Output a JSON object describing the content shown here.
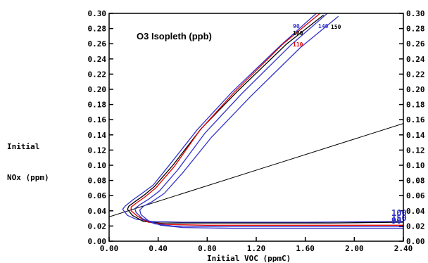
{
  "chart_data": {
    "type": "line",
    "title": "O3 Isopleth (ppb)",
    "xlabel": "Initial VOC (ppmC)",
    "ylabel_line1": "Initial",
    "ylabel_line2": "NOx (ppm)",
    "xlim": [
      0.0,
      2.4
    ],
    "ylim": [
      0.0,
      0.3
    ],
    "x_ticks": [
      "0.00",
      "0.40",
      "0.80",
      "1.20",
      "1.60",
      "2.00",
      "2.40"
    ],
    "x_tick_values": [
      0.0,
      0.4,
      0.8,
      1.2,
      1.6,
      2.0,
      2.4
    ],
    "y_ticks": [
      "0.00",
      "0.02",
      "0.04",
      "0.06",
      "0.08",
      "0.10",
      "0.12",
      "0.14",
      "0.16",
      "0.18",
      "0.20",
      "0.22",
      "0.24",
      "0.26",
      "0.28",
      "0.30"
    ],
    "y_tick_values": [
      0.0,
      0.02,
      0.04,
      0.06,
      0.08,
      0.1,
      0.12,
      0.14,
      0.16,
      0.18,
      0.2,
      0.22,
      0.24,
      0.26,
      0.28,
      0.3
    ],
    "grid": false,
    "ratio_line": {
      "color": "#000000",
      "points": [
        [
          0.0,
          0.032
        ],
        [
          2.4,
          0.155
        ]
      ]
    },
    "series": [
      {
        "label": "90",
        "color": "#3333cc",
        "points": [
          [
            1.69,
            0.3
          ],
          [
            1.4,
            0.258
          ],
          [
            1.0,
            0.196
          ],
          [
            0.72,
            0.147
          ],
          [
            0.5,
            0.102
          ],
          [
            0.36,
            0.074
          ],
          [
            0.26,
            0.062
          ],
          [
            0.19,
            0.054
          ],
          [
            0.13,
            0.046
          ],
          [
            0.11,
            0.042
          ],
          [
            0.15,
            0.034
          ],
          [
            0.22,
            0.029
          ],
          [
            0.35,
            0.026
          ],
          [
            0.6,
            0.025
          ],
          [
            1.0,
            0.025
          ],
          [
            1.6,
            0.025
          ],
          [
            2.4,
            0.026
          ]
        ]
      },
      {
        "label": "100",
        "color": "#000000",
        "points": [
          [
            1.75,
            0.298
          ],
          [
            1.45,
            0.26
          ],
          [
            1.05,
            0.198
          ],
          [
            0.75,
            0.148
          ],
          [
            0.52,
            0.1
          ],
          [
            0.37,
            0.072
          ],
          [
            0.28,
            0.06
          ],
          [
            0.21,
            0.052
          ],
          [
            0.16,
            0.046
          ],
          [
            0.15,
            0.042
          ],
          [
            0.19,
            0.034
          ],
          [
            0.28,
            0.026
          ],
          [
            0.42,
            0.024
          ],
          [
            0.7,
            0.024
          ],
          [
            1.2,
            0.024
          ],
          [
            1.8,
            0.024
          ],
          [
            2.4,
            0.025
          ]
        ]
      },
      {
        "label": "110",
        "color": "#dd0000",
        "points": [
          [
            1.72,
            0.3
          ],
          [
            1.42,
            0.26
          ],
          [
            1.02,
            0.196
          ],
          [
            0.74,
            0.146
          ],
          [
            0.53,
            0.098
          ],
          [
            0.38,
            0.07
          ],
          [
            0.29,
            0.058
          ],
          [
            0.22,
            0.05
          ],
          [
            0.18,
            0.045
          ],
          [
            0.18,
            0.04
          ],
          [
            0.23,
            0.033
          ],
          [
            0.32,
            0.025
          ],
          [
            0.46,
            0.022
          ],
          [
            0.8,
            0.021
          ],
          [
            1.3,
            0.021
          ],
          [
            1.9,
            0.021
          ],
          [
            2.4,
            0.021
          ]
        ]
      },
      {
        "label": "140",
        "color": "#3333cc",
        "points": [
          [
            1.78,
            0.3
          ],
          [
            1.48,
            0.258
          ],
          [
            1.08,
            0.194
          ],
          [
            0.78,
            0.142
          ],
          [
            0.56,
            0.094
          ],
          [
            0.41,
            0.066
          ],
          [
            0.32,
            0.055
          ],
          [
            0.25,
            0.048
          ],
          [
            0.21,
            0.043
          ],
          [
            0.22,
            0.038
          ],
          [
            0.27,
            0.03
          ],
          [
            0.37,
            0.023
          ],
          [
            0.52,
            0.02
          ],
          [
            0.9,
            0.019
          ],
          [
            1.5,
            0.019
          ],
          [
            2.0,
            0.019
          ],
          [
            2.4,
            0.019
          ]
        ]
      },
      {
        "label": "150",
        "color": "#3333cc",
        "points": [
          [
            1.87,
            0.296
          ],
          [
            1.56,
            0.255
          ],
          [
            1.15,
            0.19
          ],
          [
            0.83,
            0.136
          ],
          [
            0.6,
            0.09
          ],
          [
            0.45,
            0.063
          ],
          [
            0.35,
            0.052
          ],
          [
            0.28,
            0.046
          ],
          [
            0.25,
            0.041
          ],
          [
            0.26,
            0.035
          ],
          [
            0.32,
            0.027
          ],
          [
            0.42,
            0.021
          ],
          [
            0.6,
            0.018
          ],
          [
            1.0,
            0.017
          ],
          [
            1.6,
            0.017
          ],
          [
            2.0,
            0.017
          ],
          [
            2.4,
            0.017
          ]
        ]
      }
    ],
    "top_labels": [
      {
        "text": "90",
        "color": "#3333cc"
      },
      {
        "text": "100",
        "color": "#000000"
      },
      {
        "text": "110",
        "color": "#dd0000"
      },
      {
        "text": "140",
        "color": "#3333cc"
      },
      {
        "text": "150",
        "color": "#000000"
      }
    ],
    "right_overflow_labels": [
      {
        "text": "100",
        "color": "#3333cc"
      },
      {
        "text": "150",
        "color": "#3333cc"
      },
      {
        "text": "90",
        "color": "#3333cc"
      }
    ]
  }
}
